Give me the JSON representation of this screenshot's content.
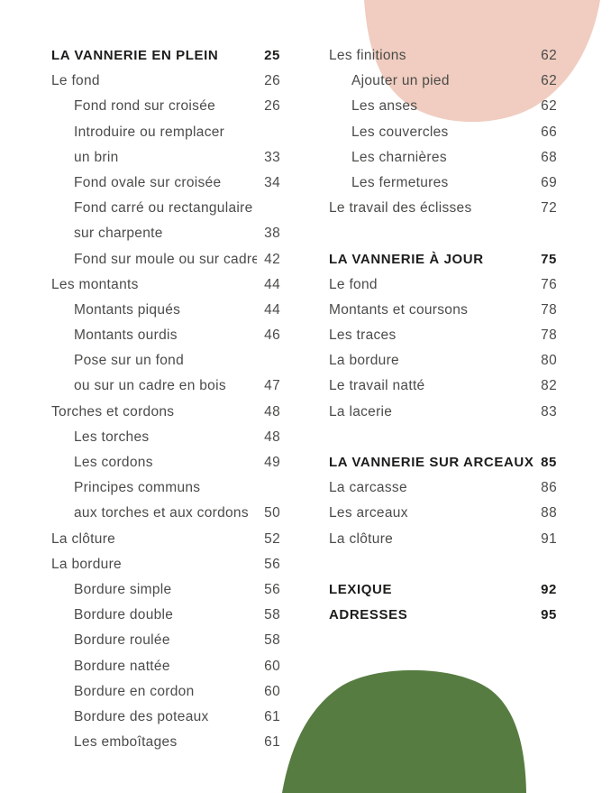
{
  "page": {
    "background": "#ffffff",
    "body_text_color": "#4b4b49",
    "heading_text_color": "#1c1c1a"
  },
  "decorations": {
    "top_blob": {
      "shape": "organic-oval",
      "color": "#f0cdc0",
      "position": "top-right"
    },
    "bottom_blob": {
      "shape": "organic-dome",
      "color": "#577c41",
      "position": "bottom-center"
    }
  },
  "toc": {
    "left_column": [
      {
        "type": "section",
        "label": "LA VANNERIE EN PLEIN",
        "page": "25"
      },
      {
        "type": "entry",
        "label": "Le fond",
        "page": "26"
      },
      {
        "type": "sub",
        "label": "Fond rond sur croisée",
        "page": "26"
      },
      {
        "type": "sub",
        "label": "Introduire ou remplacer",
        "page": ""
      },
      {
        "type": "sub",
        "label": "un brin",
        "page": "33"
      },
      {
        "type": "sub",
        "label": "Fond ovale sur croisée",
        "page": "34"
      },
      {
        "type": "sub",
        "label": "Fond carré ou rectangulaire",
        "page": ""
      },
      {
        "type": "sub",
        "label": "sur charpente",
        "page": "38"
      },
      {
        "type": "sub",
        "label": "Fond sur moule ou sur cadre",
        "page": "42"
      },
      {
        "type": "entry",
        "label": "Les montants",
        "page": "44"
      },
      {
        "type": "sub",
        "label": "Montants piqués",
        "page": "44"
      },
      {
        "type": "sub",
        "label": "Montants ourdis",
        "page": "46"
      },
      {
        "type": "sub",
        "label": "Pose sur un fond",
        "page": ""
      },
      {
        "type": "sub",
        "label": "ou sur un cadre en bois",
        "page": "47"
      },
      {
        "type": "entry",
        "label": "Torches et cordons",
        "page": "48"
      },
      {
        "type": "sub",
        "label": "Les torches",
        "page": "48"
      },
      {
        "type": "sub",
        "label": "Les cordons",
        "page": "49"
      },
      {
        "type": "sub",
        "label": "Principes communs",
        "page": ""
      },
      {
        "type": "sub",
        "label": "aux torches et aux cordons",
        "page": "50"
      },
      {
        "type": "entry",
        "label": "La clôture",
        "page": "52"
      },
      {
        "type": "entry",
        "label": "La bordure",
        "page": "56"
      },
      {
        "type": "sub",
        "label": "Bordure simple",
        "page": "56"
      },
      {
        "type": "sub",
        "label": "Bordure double",
        "page": "58"
      },
      {
        "type": "sub",
        "label": "Bordure roulée",
        "page": "58"
      },
      {
        "type": "sub",
        "label": "Bordure nattée",
        "page": "60"
      },
      {
        "type": "sub",
        "label": "Bordure en cordon",
        "page": "60"
      },
      {
        "type": "sub",
        "label": "Bordure des poteaux",
        "page": "61"
      },
      {
        "type": "sub",
        "label": "Les emboîtages",
        "page": "61"
      }
    ],
    "right_column": [
      {
        "type": "entry",
        "label": "Les finitions",
        "page": "62"
      },
      {
        "type": "sub",
        "label": "Ajouter un pied",
        "page": "62"
      },
      {
        "type": "sub",
        "label": "Les anses",
        "page": "62"
      },
      {
        "type": "sub",
        "label": "Les couvercles",
        "page": "66"
      },
      {
        "type": "sub",
        "label": "Les charnières",
        "page": "68"
      },
      {
        "type": "sub",
        "label": "Les fermetures",
        "page": "69"
      },
      {
        "type": "entry",
        "label": "Le travail des éclisses",
        "page": "72"
      },
      {
        "type": "spacer",
        "label": "",
        "page": ""
      },
      {
        "type": "section",
        "label": "LA VANNERIE À JOUR",
        "page": "75"
      },
      {
        "type": "entry",
        "label": "Le fond",
        "page": "76"
      },
      {
        "type": "entry",
        "label": "Montants et coursons",
        "page": "78"
      },
      {
        "type": "entry",
        "label": "Les traces",
        "page": "78"
      },
      {
        "type": "entry",
        "label": "La bordure",
        "page": "80"
      },
      {
        "type": "entry",
        "label": "Le travail natté",
        "page": "82"
      },
      {
        "type": "entry",
        "label": "La lacerie",
        "page": "83"
      },
      {
        "type": "spacer",
        "label": "",
        "page": ""
      },
      {
        "type": "section",
        "label": "LA VANNERIE SUR ARCEAUX",
        "page": "85"
      },
      {
        "type": "entry",
        "label": "La carcasse",
        "page": "86"
      },
      {
        "type": "entry",
        "label": "Les arceaux",
        "page": "88"
      },
      {
        "type": "entry",
        "label": "La clôture",
        "page": "91"
      },
      {
        "type": "spacer",
        "label": "",
        "page": ""
      },
      {
        "type": "section",
        "label": "LEXIQUE",
        "page": "92"
      },
      {
        "type": "section",
        "label": "ADRESSES",
        "page": "95"
      }
    ]
  }
}
